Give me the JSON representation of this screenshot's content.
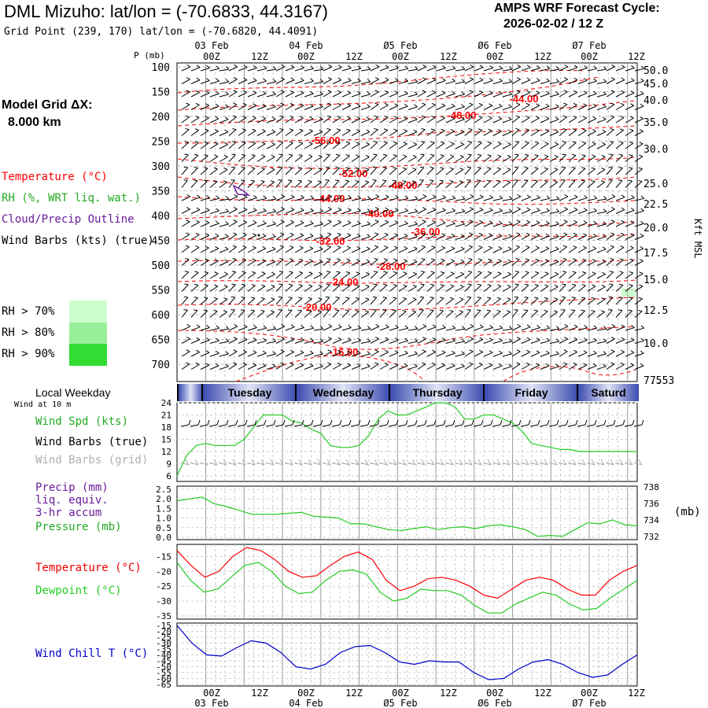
{
  "header": {
    "title": "DML Mizuho:  lat/lon = (-70.6833, 44.3167)",
    "subtitle": "Grid Point (239, 170) lat/lon = (-70.6820, 44.4091)",
    "cycle_label": "AMPS WRF Forecast Cycle:",
    "cycle_value": "2026-02-02 / 12  Z"
  },
  "model_grid": {
    "label": "Model Grid ΔX:",
    "value": "8.000 km"
  },
  "legend": {
    "temperature": "Temperature (°C)",
    "rh": "RH (%, WRT liq. wat.)",
    "cloud": "Cloud/Precip Outline",
    "wind": "Wind Barbs (kts) (true)",
    "rh70": "RH > 70%",
    "rh80": "RH > 80%",
    "rh90": "RH > 90%"
  },
  "colors": {
    "temperature": "#ff0000",
    "rh": "#22bb22",
    "cloud": "#6a1b9a",
    "wind": "#000000",
    "wind_grid": "#b0b0b0",
    "windchill": "#0000cc",
    "rh70": "#ccffcc",
    "rh80": "#99ee99",
    "rh90": "#33dd33"
  },
  "time_axis": {
    "top_dates": [
      "03 Feb",
      "04 Feb",
      "Ø5 Feb",
      "Ø6 Feb",
      "Ø7 Feb"
    ],
    "bottom_dates": [
      "03 Feb",
      "04 Feb",
      "Ø5 Feb",
      "Ø6 Feb",
      "Ø7 Feb"
    ],
    "hours": [
      "00Z",
      "12Z",
      "00Z",
      "12Z",
      "00Z",
      "12Z",
      "00Z",
      "12Z",
      "00Z",
      "12Z"
    ],
    "bottom_hours": [
      "00Z",
      "12Z",
      "00Z",
      "12Z",
      "00Z",
      "12Z",
      "00Z",
      "12Z",
      "00Z",
      "12Z"
    ]
  },
  "weekday": {
    "label": "Local Weekday",
    "wind_note": "Wind at 10 m",
    "days": [
      "Tuesday",
      "Wednesday",
      "Thursday",
      "Friday",
      "Saturd"
    ]
  },
  "sfc_legend": {
    "wind_speed": "Wind Spd (kts)",
    "wind_barbs": "Wind Barbs (true)",
    "wind_barbs_grid": "Wind Barbs (grid)",
    "precip1": "Precip (mm)",
    "precip2": "liq. equiv.",
    "precip3": "3-hr accum",
    "pressure": "Pressure (mb)",
    "temperature": "Temperature (°C)",
    "dewpoint": "Dewpoint (°C)",
    "windchill": "Wind Chill T (°C)",
    "mb_unit": "(mb)",
    "kft": "Kft MSL"
  },
  "chart_data": [
    {
      "type": "line",
      "title": "Upper-air cross-section: temperature contours, wind barbs, RH",
      "ylabel": "P (mb)",
      "y_ticks": [
        "100",
        "150",
        "200",
        "250",
        "300",
        "350",
        "400",
        "450",
        "500",
        "550",
        "600",
        "650",
        "700"
      ],
      "right_ticks": [
        "50.0",
        "45.0",
        "40.0",
        "35.0",
        "30.0",
        "25.0",
        "22.5",
        "20.0",
        "17.5",
        "15.0",
        "12.5",
        "10.0",
        "7.5"
      ],
      "right_extra_label": "7.53",
      "right_label": "Kft MSL",
      "temperature_labels": [
        "-44.00",
        "-48.00",
        "-56.00",
        "-52.00",
        "-48.00",
        "-44.00",
        "-40.00",
        "-36.00",
        "-32.00",
        "-28.00",
        "-24.00",
        "-20.00",
        "-16.00"
      ]
    },
    {
      "type": "line",
      "title": "Wind Spd (kts)",
      "y_ticks": [
        "24",
        "21",
        "18",
        "15",
        "12",
        "9",
        "6"
      ],
      "ylim": [
        6,
        24
      ],
      "x_hours": [
        0,
        12,
        24,
        36,
        48,
        60,
        72,
        84,
        96,
        108,
        120,
        132,
        144,
        156,
        168,
        180,
        192,
        204,
        216,
        228,
        240,
        252,
        264,
        276,
        288,
        300,
        312,
        324,
        336,
        348,
        360,
        372,
        384,
        396,
        408,
        420,
        432,
        444,
        456,
        468,
        480,
        492,
        504,
        516,
        528,
        540,
        552,
        564,
        576
      ],
      "values": [
        6,
        11,
        13.5,
        14,
        13.5,
        13.5,
        13.5,
        15,
        18,
        21,
        21,
        21,
        19.5,
        19,
        17.5,
        16.5,
        13.5,
        13,
        13,
        13.5,
        16,
        20,
        22,
        21,
        21,
        22,
        23,
        24,
        24,
        23,
        20,
        20,
        21,
        21,
        20,
        19,
        17,
        14,
        13.5,
        13,
        12.5,
        12.5,
        12,
        12,
        12,
        12,
        12,
        12,
        12
      ]
    },
    {
      "type": "line",
      "title": "Precip / Pressure (mb)",
      "y_ticks": [
        "2.5",
        "2.0",
        "1.5",
        "1.0",
        "0.5",
        "0.0"
      ],
      "right_ticks": [
        "738",
        "736",
        "734",
        "732"
      ],
      "ylim": [
        0,
        2.5
      ],
      "values": [
        1.9,
        2.0,
        2.1,
        1.75,
        1.6,
        1.4,
        1.2,
        1.2,
        1.2,
        1.25,
        1.3,
        1.1,
        1.05,
        1.0,
        0.7,
        0.7,
        0.55,
        0.4,
        0.35,
        0.45,
        0.55,
        0.4,
        0.5,
        0.55,
        0.45,
        0.6,
        0.65,
        0.55,
        0.4,
        0.05,
        0.1,
        0.05,
        0.4,
        0.75,
        0.7,
        0.9,
        0.65,
        0.6
      ]
    },
    {
      "type": "line",
      "title": "Temperature / Dewpoint (°C)",
      "y_ticks": [
        "-15",
        "-20",
        "-25",
        "-30",
        "-35"
      ],
      "ylim": [
        -35,
        -12
      ],
      "series": [
        {
          "name": "Temperature (°C)",
          "color": "#ff0000",
          "values": [
            -13,
            -18,
            -22,
            -20,
            -15,
            -12,
            -13,
            -16,
            -20,
            -22,
            -21.5,
            -18,
            -15,
            -13.5,
            -16,
            -23,
            -26.5,
            -25,
            -22.5,
            -22,
            -23,
            -25,
            -28,
            -29,
            -26,
            -23,
            -22,
            -23,
            -26,
            -28,
            -28,
            -23,
            -20,
            -18
          ]
        },
        {
          "name": "Dewpoint (°C)",
          "color": "#22cc22",
          "values": [
            -17,
            -23,
            -27,
            -26,
            -22,
            -18,
            -17,
            -20,
            -25,
            -27.5,
            -27,
            -23,
            -20,
            -19.5,
            -21,
            -27,
            -30,
            -29,
            -26,
            -26.5,
            -26.5,
            -28,
            -31.5,
            -34,
            -34,
            -31,
            -29,
            -27,
            -28,
            -31,
            -33,
            -32.5,
            -29,
            -26,
            -23
          ]
        }
      ]
    },
    {
      "type": "line",
      "title": "Wind Chill T (°C)",
      "y_ticks": [
        "-15",
        "-20",
        "-25",
        "-30",
        "-35",
        "-40",
        "-45",
        "-50",
        "-55",
        "-60",
        "-65"
      ],
      "ylim": [
        -65,
        -15
      ],
      "values": [
        -15,
        -30,
        -40,
        -41,
        -34,
        -28,
        -30,
        -38,
        -50,
        -52,
        -48,
        -38,
        -33,
        -32,
        -38,
        -46,
        -48,
        -45,
        -46,
        -46,
        -55,
        -61,
        -60,
        -52,
        -46,
        -44,
        -48,
        -55,
        -59,
        -57,
        -48,
        -40
      ]
    }
  ]
}
